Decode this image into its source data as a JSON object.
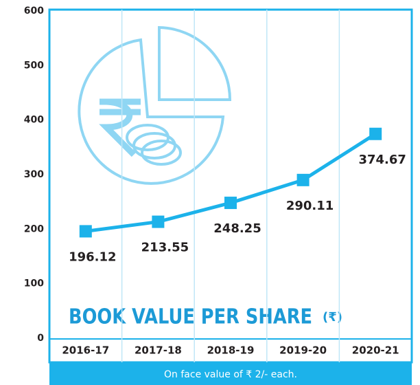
{
  "chart_data": {
    "type": "line",
    "title": "BOOK VALUE PER SHARE",
    "title_unit": "(₹)",
    "note": "On face value of  ₹ 2/- each.",
    "categories": [
      "2016-17",
      "2017-18",
      "2018-19",
      "2019-20",
      "2020-21"
    ],
    "values": [
      196.12,
      213.55,
      248.25,
      290.11,
      374.67
    ],
    "color": "#1cb2ea",
    "highlight_color": "#29b3e8",
    "highlight_index": 4,
    "ylim": [
      0,
      600
    ],
    "yticks": [
      0,
      100,
      200,
      300,
      400,
      500,
      600
    ]
  }
}
